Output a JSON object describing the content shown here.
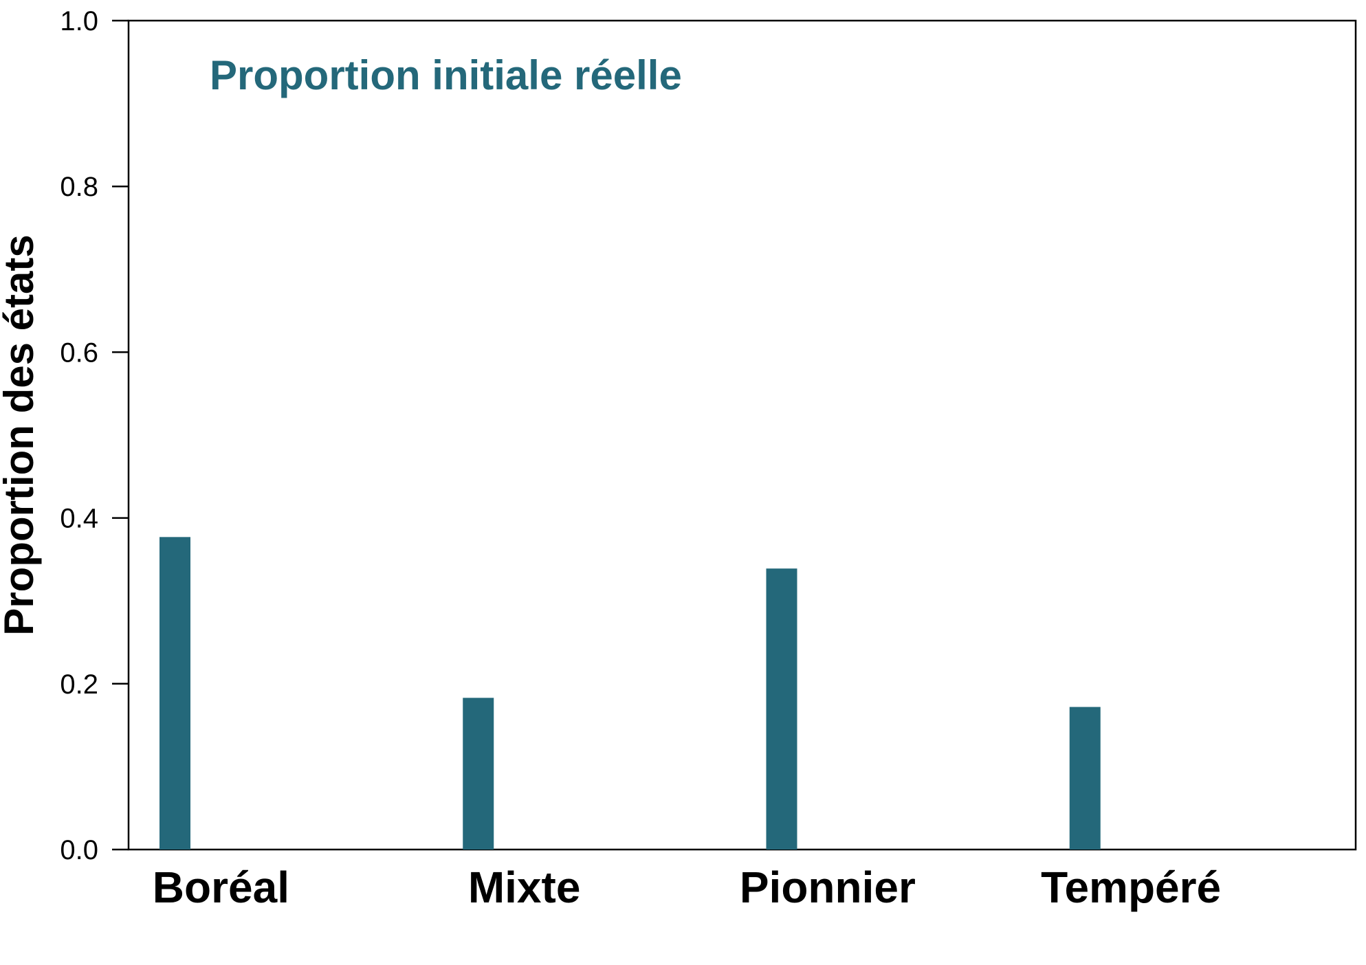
{
  "chart_data": {
    "type": "bar",
    "title": "",
    "annotation": "Proportion initiale réelle",
    "xlabel": "",
    "ylabel": "Proportion des états",
    "categories": [
      "Boréal",
      "Mixte",
      "Pionnier",
      "Tempéré"
    ],
    "values": [
      0.377,
      0.183,
      0.339,
      0.172
    ],
    "ylim": [
      0,
      1.0
    ],
    "yticks": [
      "0.0",
      "0.2",
      "0.4",
      "0.6",
      "0.8",
      "1.0"
    ],
    "grid": false,
    "legend": "none",
    "bar_color": "#24687a",
    "annotation_color": "#24687a"
  }
}
